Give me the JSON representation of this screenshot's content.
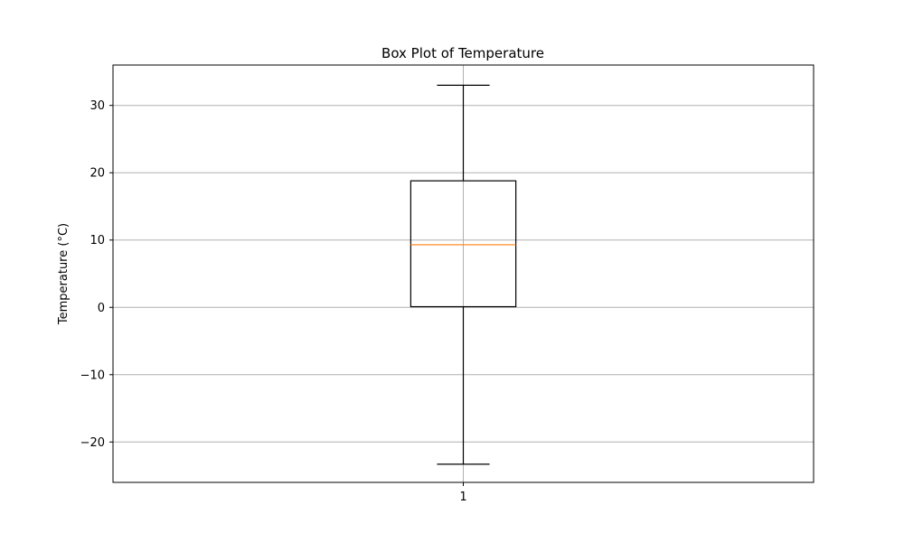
{
  "chart_data": {
    "type": "box",
    "title": "Box Plot of Temperature",
    "ylabel": "Temperature (°C)",
    "xlabel": "",
    "categories": [
      "1"
    ],
    "ylim": [
      -26,
      36
    ],
    "yticks": [
      -20,
      -10,
      0,
      10,
      20,
      30
    ],
    "ytick_labels": [
      "−20",
      "−10",
      "0",
      "10",
      "20",
      "30"
    ],
    "grid": true,
    "boxes": [
      {
        "category": "1",
        "whisker_low": -23.3,
        "q1": 0.1,
        "median": 9.3,
        "q3": 18.8,
        "whisker_high": 33.0
      }
    ],
    "colors": {
      "box": "#000000",
      "median": "#ff7f0e",
      "grid": "#b0b0b0"
    }
  }
}
